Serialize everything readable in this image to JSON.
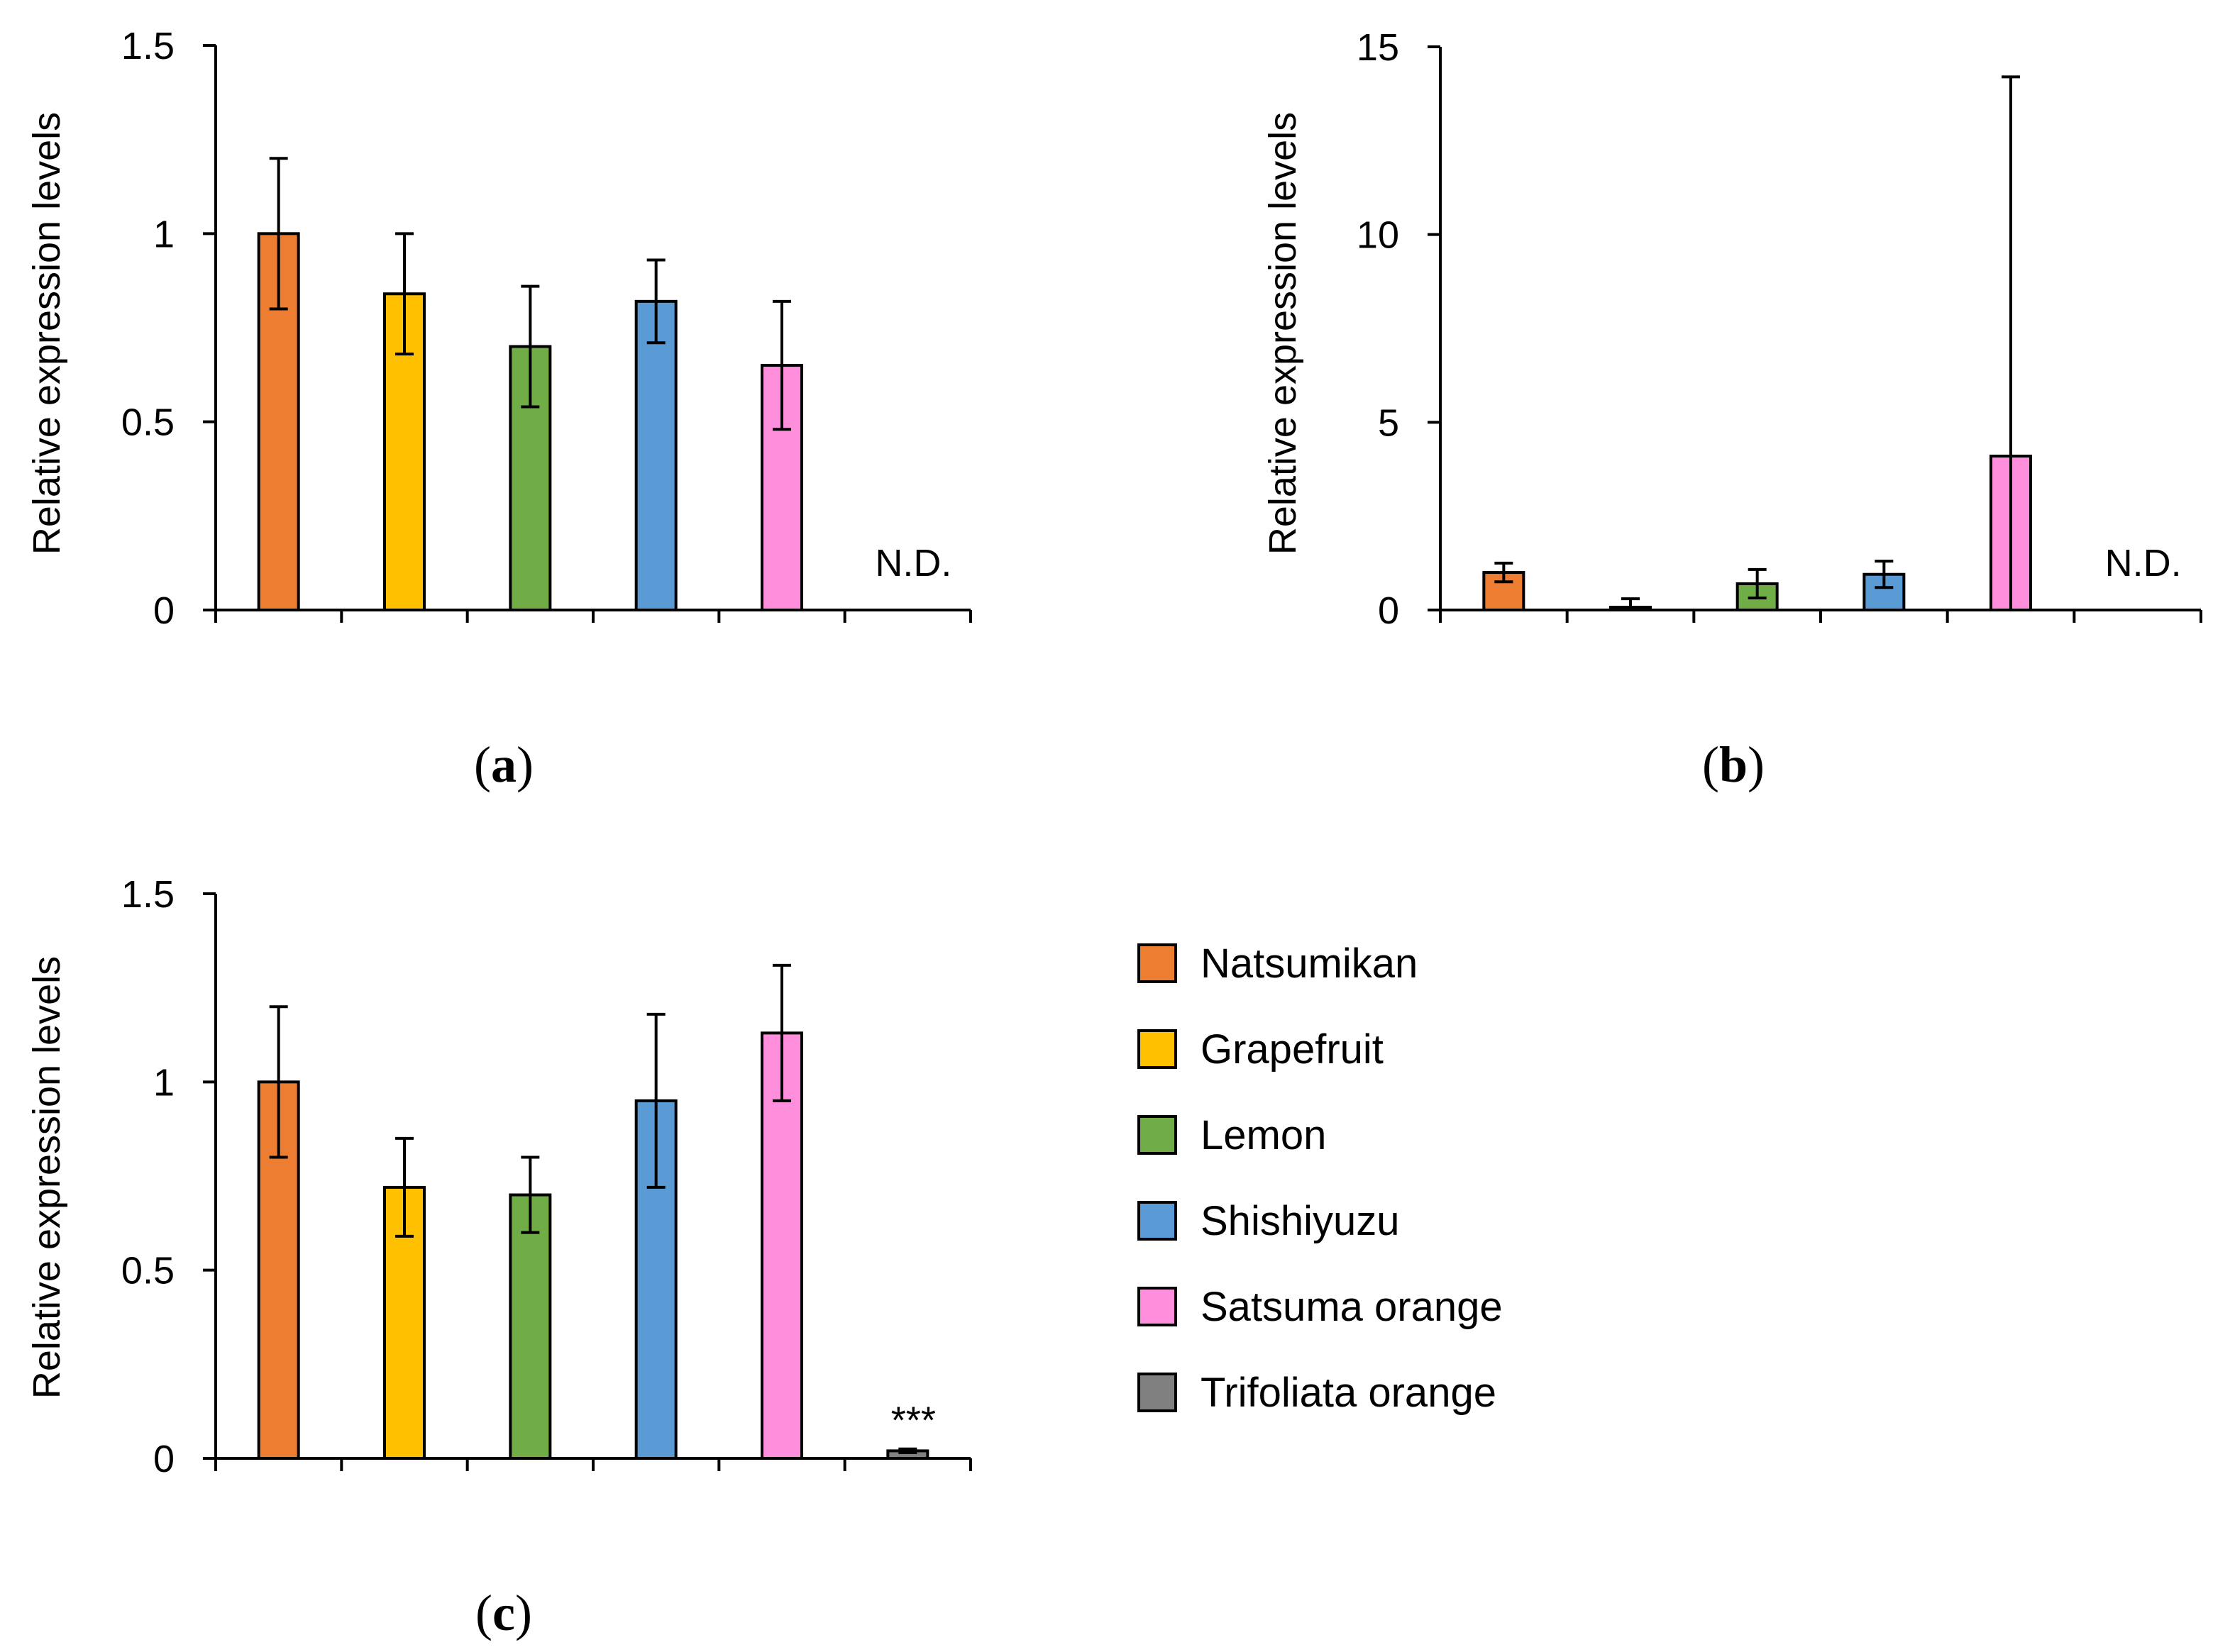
{
  "chart_data": [
    {
      "type": "bar",
      "panel": "a",
      "ylabel": "Relative expression levels",
      "ylim": [
        0,
        1.5
      ],
      "yticks": [
        "0",
        "0.5",
        "1",
        "1.5"
      ],
      "ytick_values": [
        0,
        0.5,
        1,
        1.5
      ],
      "categories": [
        "Natsumikan",
        "Grapefruit",
        "Lemon",
        "Shishiyuzu",
        "Satsuma orange",
        "Trifoliata orange"
      ],
      "values": [
        1.0,
        0.84,
        0.7,
        0.82,
        0.65,
        null
      ],
      "errors": [
        0.2,
        0.16,
        0.16,
        0.11,
        0.17,
        null
      ],
      "annotation": "N.D."
    },
    {
      "type": "bar",
      "panel": "b",
      "ylabel": "Relative expression levels",
      "ylim": [
        0,
        15
      ],
      "yticks": [
        "0",
        "5",
        "10",
        "15"
      ],
      "ytick_values": [
        0,
        5,
        10,
        15
      ],
      "categories": [
        "Natsumikan",
        "Grapefruit",
        "Lemon",
        "Shishiyuzu",
        "Satsuma orange",
        "Trifoliata orange"
      ],
      "values": [
        1.0,
        0.05,
        0.7,
        0.95,
        4.1,
        null
      ],
      "errors": [
        0.25,
        0.25,
        0.38,
        0.35,
        10.1,
        null
      ],
      "annotation": "N.D."
    },
    {
      "type": "bar",
      "panel": "c",
      "ylabel": "Relative expression levels",
      "ylim": [
        0,
        1.5
      ],
      "yticks": [
        "0",
        "0.5",
        "1",
        "1.5"
      ],
      "ytick_values": [
        0,
        0.5,
        1,
        1.5
      ],
      "categories": [
        "Natsumikan",
        "Grapefruit",
        "Lemon",
        "Shishiyuzu",
        "Satsuma orange",
        "Trifoliata orange"
      ],
      "values": [
        1.0,
        0.72,
        0.7,
        0.95,
        1.13,
        0.02
      ],
      "errors": [
        0.2,
        0.13,
        0.1,
        0.23,
        0.18,
        0.005
      ],
      "annotation": "***"
    }
  ],
  "panel_labels": {
    "a": "a",
    "b": "b",
    "c": "c",
    "open": "(",
    "close": ")"
  },
  "legend": {
    "items": [
      {
        "label": "Natsumikan",
        "color": "#ed7d31"
      },
      {
        "label": "Grapefruit",
        "color": "#ffc000"
      },
      {
        "label": "Lemon",
        "color": "#70ad47"
      },
      {
        "label": "Shishiyuzu",
        "color": "#5b9bd5"
      },
      {
        "label": "Satsuma orange",
        "color": "#ff8fdc"
      },
      {
        "label": "Trifoliata orange",
        "color": "#808080"
      }
    ]
  }
}
